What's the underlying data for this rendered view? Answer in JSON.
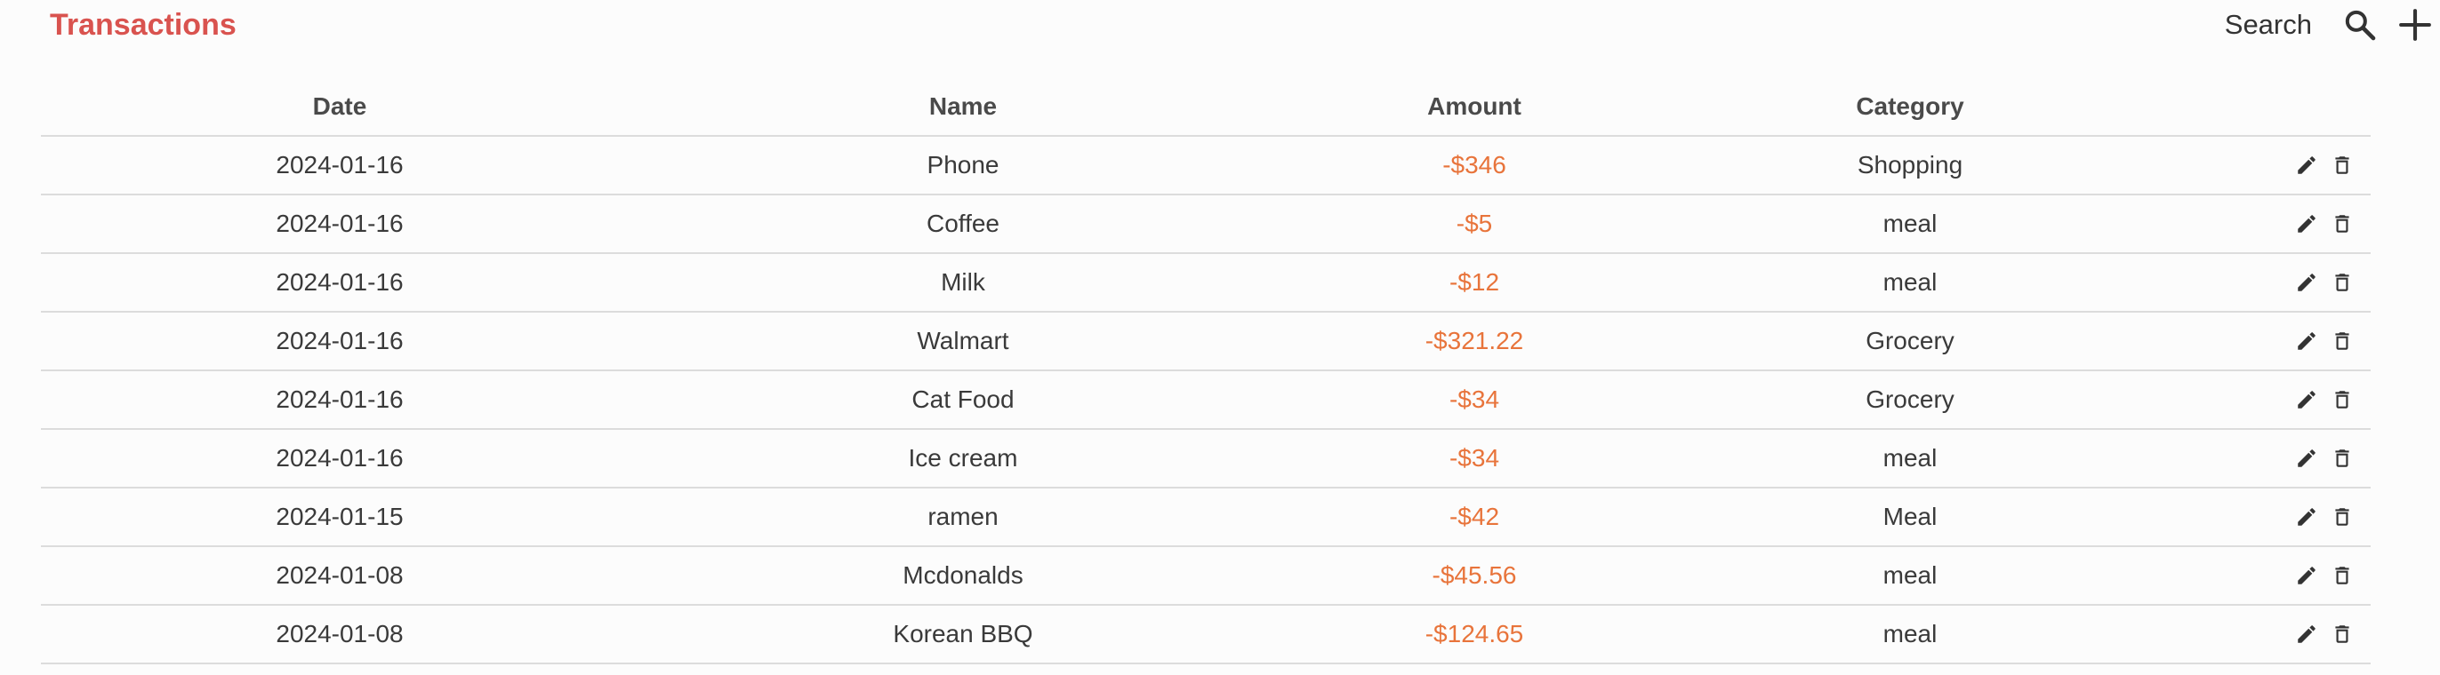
{
  "header": {
    "title": "Transactions",
    "search_label": "Search",
    "search_icon": "search-icon",
    "add_icon": "plus-icon"
  },
  "table": {
    "columns": [
      "Date",
      "Name",
      "Amount",
      "Category"
    ],
    "rows": [
      {
        "date": "2024-01-16",
        "name": "Phone",
        "amount": "-$346",
        "category": "Shopping"
      },
      {
        "date": "2024-01-16",
        "name": "Coffee",
        "amount": "-$5",
        "category": "meal"
      },
      {
        "date": "2024-01-16",
        "name": "Milk",
        "amount": "-$12",
        "category": "meal"
      },
      {
        "date": "2024-01-16",
        "name": "Walmart",
        "amount": "-$321.22",
        "category": "Grocery"
      },
      {
        "date": "2024-01-16",
        "name": "Cat Food",
        "amount": "-$34",
        "category": "Grocery"
      },
      {
        "date": "2024-01-16",
        "name": "Ice cream",
        "amount": "-$34",
        "category": "meal"
      },
      {
        "date": "2024-01-15",
        "name": "ramen",
        "amount": "-$42",
        "category": "Meal"
      },
      {
        "date": "2024-01-08",
        "name": "Mcdonalds",
        "amount": "-$45.56",
        "category": "meal"
      },
      {
        "date": "2024-01-08",
        "name": "Korean BBQ",
        "amount": "-$124.65",
        "category": "meal"
      }
    ],
    "row_actions": [
      "edit-icon",
      "delete-icon"
    ]
  },
  "colors": {
    "title": "#d9534f",
    "amount": "#e8743b",
    "text": "#3a3a3a",
    "divider": "#dcdcdc",
    "background": "#fcfcfc"
  }
}
